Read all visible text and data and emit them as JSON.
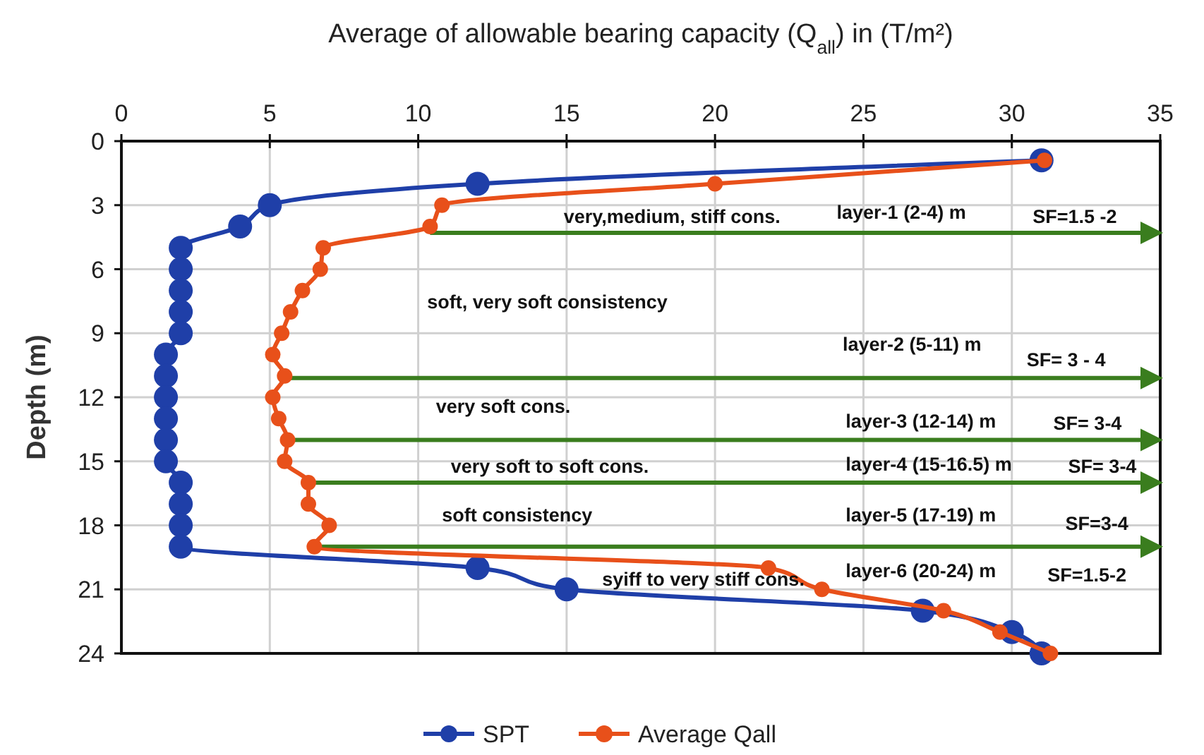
{
  "chart_data": {
    "type": "line",
    "xlabel": "Average of allowable bearing capacity (Q$_{all}$) in (T/m²)",
    "ylabel": "Depth (m)",
    "xlim": [
      0,
      35
    ],
    "xticks": [
      0,
      5,
      10,
      15,
      20,
      25,
      30,
      35
    ],
    "ylim": [
      24,
      0
    ],
    "yticks": [
      0,
      3,
      6,
      9,
      12,
      15,
      18,
      21,
      24
    ],
    "grid": true,
    "marker": "circle",
    "legend": "bottom",
    "series": [
      {
        "name": "SPT",
        "color": "#1f3fa8",
        "x": [
          31,
          12,
          5,
          4,
          2,
          2,
          2,
          2,
          2,
          1.5,
          1.5,
          1.5,
          1.5,
          1.5,
          1.5,
          2,
          2,
          2,
          2,
          12,
          15,
          27,
          30,
          31
        ],
        "values": [
          0.9,
          2,
          3,
          4,
          5,
          6,
          7,
          8,
          9,
          10,
          11,
          12,
          13,
          14,
          15,
          16,
          17,
          18,
          19,
          20,
          21,
          22,
          23,
          24
        ]
      },
      {
        "name": "Average Qall",
        "color": "#e8501a",
        "x": [
          31.1,
          20,
          10.8,
          10.4,
          6.8,
          6.7,
          6.1,
          5.7,
          5.4,
          5.1,
          5.5,
          5.1,
          5.3,
          5.6,
          5.5,
          6.3,
          6.3,
          7,
          6.5,
          21.8,
          23.6,
          27.7,
          29.6,
          31.3
        ],
        "values": [
          0.9,
          2,
          3,
          4,
          5,
          6,
          7,
          8,
          9,
          10,
          11,
          12,
          13,
          14,
          15,
          16,
          17,
          18,
          19,
          20,
          21,
          22,
          23,
          24
        ]
      }
    ],
    "ref_lines": [
      {
        "axis": "y",
        "value": 4.3,
        "color": "#3a7d1e"
      },
      {
        "axis": "y",
        "value": 11.1,
        "color": "#3a7d1e"
      },
      {
        "axis": "y",
        "value": 14,
        "color": "#3a7d1e"
      },
      {
        "axis": "y",
        "value": 16,
        "color": "#3a7d1e"
      },
      {
        "axis": "y",
        "value": 19,
        "color": "#3a7d1e"
      }
    ],
    "annotations": [
      "very,medium, stiff cons.",
      "layer-1 (2-4) m",
      "SF=1.5 -2",
      "soft, very soft consistency",
      "layer-2 (5-11) m",
      "SF= 3 - 4",
      "very soft cons.",
      "layer-3 (12-14) m",
      "SF= 3-4",
      "very soft to soft cons.",
      "layer-4 (15-16.5) m",
      "SF= 3-4",
      "soft consistency",
      "layer-5 (17-19) m",
      "SF=3-4",
      "syiff to very stiff cons.",
      "layer-6 (20-24) m",
      "SF=1.5-2"
    ]
  }
}
